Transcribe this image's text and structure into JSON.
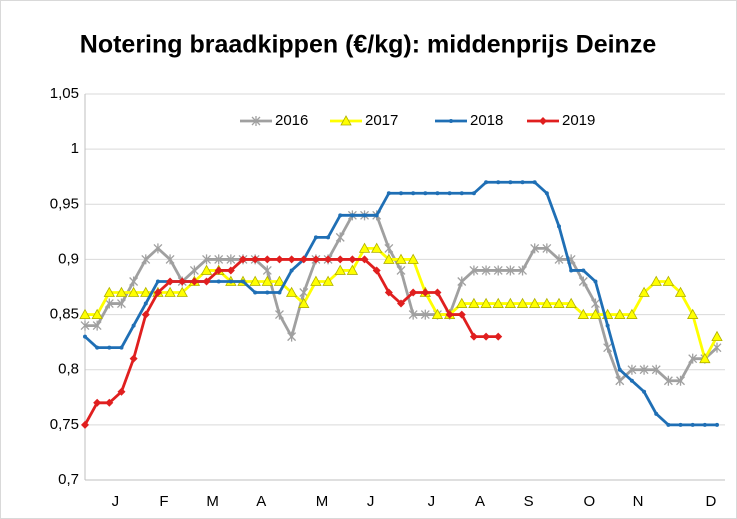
{
  "chart_data": {
    "type": "line",
    "title": "Notering braadkippen (€/kg): middenprijs Deinze",
    "categories": [
      null,
      null,
      "J",
      null,
      null,
      null,
      "F",
      null,
      null,
      null,
      "M",
      null,
      null,
      null,
      "A",
      null,
      null,
      null,
      null,
      "M",
      null,
      null,
      null,
      "J",
      null,
      null,
      null,
      null,
      "J",
      null,
      null,
      null,
      "A",
      null,
      null,
      null,
      "S",
      null,
      null,
      null,
      null,
      "O",
      null,
      null,
      null,
      "N",
      null,
      null,
      null,
      null,
      null,
      "D",
      null
    ],
    "ylim": [
      0.7,
      1.05
    ],
    "yticks": [
      {
        "value": 0.7,
        "label": "0,7"
      },
      {
        "value": 0.75,
        "label": "0,75"
      },
      {
        "value": 0.8,
        "label": "0,8"
      },
      {
        "value": 0.85,
        "label": "0,85"
      },
      {
        "value": 0.9,
        "label": "0,9"
      },
      {
        "value": 0.95,
        "label": "0,95"
      },
      1,
      {
        "value": 1.05,
        "label": "1,05"
      }
    ],
    "grid": true,
    "legend": "top",
    "series": [
      {
        "name": "2016",
        "color": "#a0a0a0",
        "marker": "asterisk",
        "values": [
          0.84,
          0.84,
          0.86,
          0.86,
          0.88,
          0.9,
          0.91,
          0.9,
          0.88,
          0.89,
          0.9,
          0.9,
          0.9,
          0.9,
          0.9,
          0.89,
          0.85,
          0.83,
          0.87,
          0.9,
          0.9,
          0.92,
          0.94,
          0.94,
          0.94,
          0.91,
          0.89,
          0.85,
          0.85,
          0.85,
          0.85,
          0.88,
          0.89,
          0.89,
          0.89,
          0.89,
          0.89,
          0.91,
          0.91,
          0.9,
          0.9,
          0.88,
          0.86,
          0.82,
          0.79,
          0.8,
          0.8,
          0.8,
          0.79,
          0.79,
          0.81,
          0.81,
          0.82
        ]
      },
      {
        "name": "2017",
        "color": "#ffff00",
        "marker": "triangle",
        "values": [
          0.85,
          0.85,
          0.87,
          0.87,
          0.87,
          0.87,
          0.87,
          0.87,
          0.87,
          0.88,
          0.89,
          0.89,
          0.88,
          0.88,
          0.88,
          0.88,
          0.88,
          0.87,
          0.86,
          0.88,
          0.88,
          0.89,
          0.89,
          0.91,
          0.91,
          0.9,
          0.9,
          0.9,
          0.87,
          0.85,
          0.85,
          0.86,
          0.86,
          0.86,
          0.86,
          0.86,
          0.86,
          0.86,
          0.86,
          0.86,
          0.86,
          0.85,
          0.85,
          0.85,
          0.85,
          0.85,
          0.87,
          0.88,
          0.88,
          0.87,
          0.85,
          0.81,
          0.83
        ]
      },
      {
        "name": "2018",
        "color": "#1f6fb5",
        "marker": "dot",
        "values": [
          0.83,
          0.82,
          0.82,
          0.82,
          0.84,
          0.86,
          0.88,
          0.88,
          0.88,
          0.88,
          0.88,
          0.88,
          0.88,
          0.88,
          0.87,
          0.87,
          0.87,
          0.89,
          0.9,
          0.92,
          0.92,
          0.94,
          0.94,
          0.94,
          0.94,
          0.96,
          0.96,
          0.96,
          0.96,
          0.96,
          0.96,
          0.96,
          0.96,
          0.97,
          0.97,
          0.97,
          0.97,
          0.97,
          0.96,
          0.93,
          0.89,
          0.89,
          0.88,
          0.84,
          0.8,
          0.79,
          0.78,
          0.76,
          0.75,
          0.75,
          0.75,
          0.75,
          0.75
        ]
      },
      {
        "name": "2019",
        "color": "#e01f1f",
        "marker": "diamond",
        "values": [
          0.75,
          0.77,
          0.77,
          0.78,
          0.81,
          0.85,
          0.87,
          0.88,
          0.88,
          0.88,
          0.88,
          0.89,
          0.89,
          0.9,
          0.9,
          0.9,
          0.9,
          0.9,
          0.9,
          0.9,
          0.9,
          0.9,
          0.9,
          0.9,
          0.89,
          0.87,
          0.86,
          0.87,
          0.87,
          0.87,
          0.85,
          0.85,
          0.83,
          0.83,
          0.83,
          null,
          null,
          null,
          null,
          null,
          null,
          null,
          null,
          null,
          null,
          null,
          null,
          null,
          null,
          null,
          null,
          null,
          null
        ]
      }
    ]
  }
}
